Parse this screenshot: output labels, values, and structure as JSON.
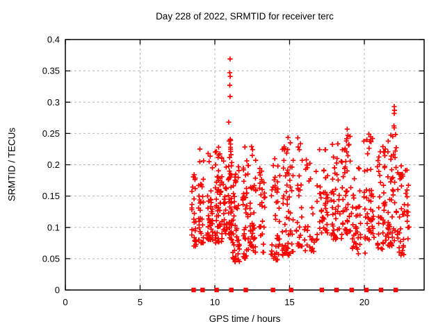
{
  "chart_data": {
    "type": "scatter",
    "title": "Day 228 of 2022, SRMTID for receiver terc",
    "xlabel": "GPS time / hours",
    "ylabel": "SRMTID / TECUs",
    "xlim": [
      0,
      24
    ],
    "ylim": [
      0,
      0.4
    ],
    "xtick_values": [
      0,
      5,
      10,
      15,
      20
    ],
    "xtick_labels": [
      "0",
      "5",
      "10",
      "15",
      "20"
    ],
    "ytick_values": [
      0,
      0.05,
      0.1,
      0.15,
      0.2,
      0.25,
      0.3,
      0.35,
      0.4
    ],
    "ytick_labels": [
      "0",
      "0.05",
      "0.1",
      "0.15",
      "0.2",
      "0.25",
      "0.3",
      "0.35",
      "0.4"
    ],
    "grid": true,
    "grid_style": "dashed",
    "grid_color": "#b3b3b3",
    "border_color": "#000000",
    "marker": "plus",
    "marker_color": "#ff0000",
    "baseline_marker": "filled-square",
    "baseline_markers_y0": [
      8.58,
      9.18,
      10.12,
      11.1,
      12.07,
      13.89,
      15.1,
      17.16,
      18.14,
      19.16,
      20.14,
      21.12,
      22.1
    ],
    "notable_points": [
      [
        11.02,
        0.369
      ],
      [
        11.0,
        0.347
      ],
      [
        11.03,
        0.341
      ],
      [
        11.0,
        0.327
      ],
      [
        11.02,
        0.309
      ],
      [
        10.93,
        0.268
      ],
      [
        10.96,
        0.238
      ],
      [
        11.05,
        0.233
      ],
      [
        9.0,
        0.225
      ],
      [
        9.55,
        0.218
      ],
      [
        9.62,
        0.205
      ],
      [
        12.45,
        0.229
      ],
      [
        12.5,
        0.215
      ],
      [
        15.05,
        0.235
      ],
      [
        15.55,
        0.243
      ],
      [
        18.85,
        0.257
      ],
      [
        18.9,
        0.247
      ],
      [
        18.8,
        0.238
      ],
      [
        20.3,
        0.249
      ],
      [
        20.45,
        0.237
      ],
      [
        22.0,
        0.293
      ],
      [
        22.02,
        0.287
      ],
      [
        22.0,
        0.282
      ],
      [
        21.98,
        0.262
      ],
      [
        22.0,
        0.259
      ],
      [
        20.05,
        0.059
      ],
      [
        19.6,
        0.058
      ],
      [
        11.35,
        0.045
      ],
      [
        14.1,
        0.048
      ]
    ],
    "clusters": [
      {
        "x": [
          8.45,
          8.75
        ],
        "y": [
          0.07,
          0.2
        ],
        "n": 28,
        "pow": 2.2
      },
      {
        "x": [
          8.9,
          9.25
        ],
        "y": [
          0.075,
          0.21
        ],
        "n": 32,
        "pow": 2.2
      },
      {
        "x": [
          9.45,
          9.85
        ],
        "y": [
          0.08,
          0.22
        ],
        "n": 40,
        "pow": 2.0
      },
      {
        "x": [
          10.0,
          10.5
        ],
        "y": [
          0.075,
          0.23
        ],
        "n": 55,
        "pow": 1.7
      },
      {
        "x": [
          10.55,
          10.85
        ],
        "y": [
          0.09,
          0.215
        ],
        "n": 24,
        "pow": 1.8
      },
      {
        "x": [
          10.9,
          11.15
        ],
        "y": [
          0.08,
          0.245
        ],
        "n": 45,
        "pow": 1.5
      },
      {
        "x": [
          11.2,
          11.65
        ],
        "y": [
          0.045,
          0.215
        ],
        "n": 45,
        "pow": 1.6
      },
      {
        "x": [
          11.85,
          12.25
        ],
        "y": [
          0.05,
          0.23
        ],
        "n": 40,
        "pow": 1.7
      },
      {
        "x": [
          12.35,
          12.75
        ],
        "y": [
          0.06,
          0.23
        ],
        "n": 36,
        "pow": 1.8
      },
      {
        "x": [
          12.9,
          13.35
        ],
        "y": [
          0.06,
          0.195
        ],
        "n": 28,
        "pow": 1.6
      },
      {
        "x": [
          13.75,
          14.35
        ],
        "y": [
          0.048,
          0.21
        ],
        "n": 40,
        "pow": 1.5
      },
      {
        "x": [
          14.5,
          15.25
        ],
        "y": [
          0.055,
          0.245
        ],
        "n": 60,
        "pow": 1.6
      },
      {
        "x": [
          15.45,
          15.85
        ],
        "y": [
          0.07,
          0.243
        ],
        "n": 28,
        "pow": 1.9
      },
      {
        "x": [
          16.0,
          16.85
        ],
        "y": [
          0.06,
          0.21
        ],
        "n": 32,
        "pow": 1.7
      },
      {
        "x": [
          17.0,
          17.55
        ],
        "y": [
          0.09,
          0.225
        ],
        "n": 40,
        "pow": 1.4
      },
      {
        "x": [
          17.75,
          18.6
        ],
        "y": [
          0.08,
          0.235
        ],
        "n": 52,
        "pow": 1.5
      },
      {
        "x": [
          18.65,
          19.15
        ],
        "y": [
          0.09,
          0.248
        ],
        "n": 36,
        "pow": 1.6
      },
      {
        "x": [
          19.2,
          19.75
        ],
        "y": [
          0.065,
          0.2
        ],
        "n": 36,
        "pow": 1.4
      },
      {
        "x": [
          19.95,
          20.65
        ],
        "y": [
          0.08,
          0.25
        ],
        "n": 48,
        "pow": 1.5
      },
      {
        "x": [
          20.85,
          21.45
        ],
        "y": [
          0.065,
          0.235
        ],
        "n": 44,
        "pow": 1.4
      },
      {
        "x": [
          21.5,
          22.15
        ],
        "y": [
          0.07,
          0.25
        ],
        "n": 48,
        "pow": 1.4
      },
      {
        "x": [
          22.2,
          22.7
        ],
        "y": [
          0.055,
          0.21
        ],
        "n": 32,
        "pow": 1.5
      },
      {
        "x": [
          22.75,
          23.0
        ],
        "y": [
          0.07,
          0.195
        ],
        "n": 14,
        "pow": 1.3
      }
    ],
    "data_span_hours": [
      8.45,
      23.0
    ],
    "legend": null
  }
}
